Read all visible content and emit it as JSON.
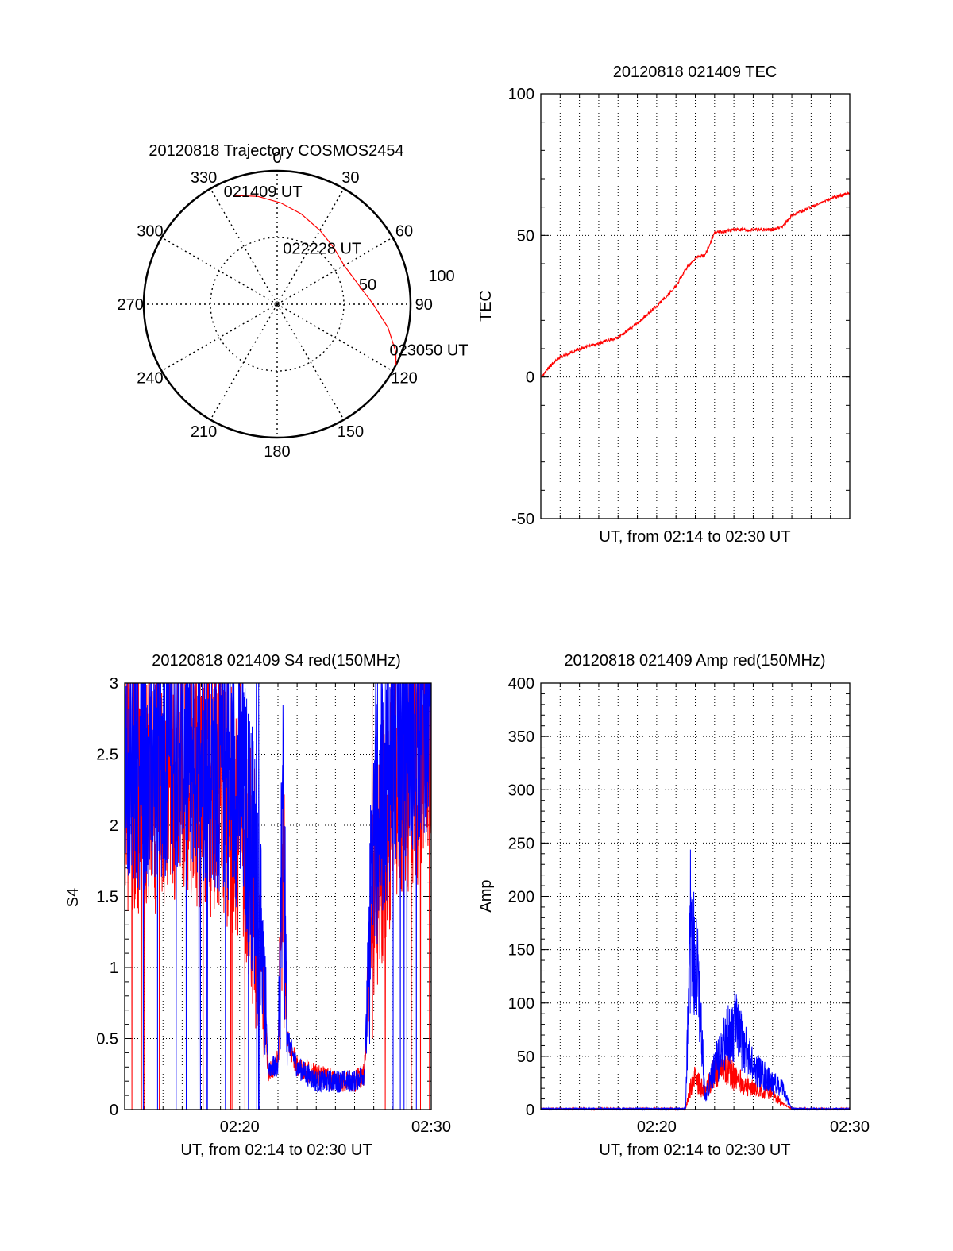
{
  "chart_data": [
    {
      "type": "polar",
      "title": "20120818 Trajectory COSMOS2454",
      "azimuth_ticks": [
        "0",
        "30",
        "60",
        "90",
        "120",
        "150",
        "180",
        "210",
        "240",
        "270",
        "300",
        "330"
      ],
      "radial_ticks": [
        "50",
        "100"
      ],
      "rlim": [
        0,
        100
      ],
      "series": [
        {
          "color": "#ff0000",
          "points": [
            {
              "az": 338,
              "r": 88
            },
            {
              "az": 350,
              "r": 82
            },
            {
              "az": 2,
              "r": 76
            },
            {
              "az": 15,
              "r": 70
            },
            {
              "az": 30,
              "r": 64
            },
            {
              "az": 45,
              "r": 60
            },
            {
              "az": 60,
              "r": 58
            },
            {
              "az": 75,
              "r": 62
            },
            {
              "az": 90,
              "r": 72
            },
            {
              "az": 102,
              "r": 85
            },
            {
              "az": 112,
              "r": 96
            },
            {
              "az": 117,
              "r": 100
            }
          ]
        }
      ],
      "annotations": [
        {
          "text": "021409 UT",
          "az": 338,
          "r": 88
        },
        {
          "text": "022228 UT",
          "az": 45,
          "r": 60
        },
        {
          "text": "023050 UT",
          "az": 112,
          "r": 96
        }
      ]
    },
    {
      "type": "line",
      "title": "20120818 021409 TEC",
      "xlabel": "UT, from 02:14 to 02:30 UT",
      "ylabel": "TEC",
      "xlim": [
        "02:14",
        "02:30"
      ],
      "ylim": [
        -50,
        100
      ],
      "yticks": [
        "-50",
        "0",
        "50",
        "100"
      ],
      "grid": true,
      "series": [
        {
          "color": "#ff0000",
          "x": [
            "02:14:00",
            "02:14:30",
            "02:15:00",
            "02:16:00",
            "02:17:00",
            "02:18:00",
            "02:19:00",
            "02:20:00",
            "02:21:00",
            "02:21:30",
            "02:22:00",
            "02:22:30",
            "02:23:00",
            "02:24:00",
            "02:25:00",
            "02:26:00",
            "02:26:30",
            "02:27:00",
            "02:28:00",
            "02:29:00",
            "02:30:00"
          ],
          "values": [
            0,
            4,
            7,
            10,
            12,
            14,
            19,
            25,
            32,
            38,
            42,
            43,
            51,
            52,
            52,
            52,
            53,
            57,
            60,
            63,
            65
          ]
        }
      ]
    },
    {
      "type": "line",
      "title": "20120818 021409 S4 red(150MHz)",
      "xlabel": "UT, from 02:14 to 02:30 UT",
      "ylabel": "S4",
      "xlim": [
        "02:14",
        "02:30"
      ],
      "ylim": [
        0,
        3
      ],
      "xticks": [
        "02:20",
        "02:30"
      ],
      "yticks": [
        "0",
        "0.5",
        "1",
        "1.5",
        "2",
        "2.5",
        "3"
      ],
      "grid": true,
      "series": [
        {
          "color": "#ff0000",
          "x": [
            "02:14:00",
            "02:15:00",
            "02:16:00",
            "02:17:00",
            "02:18:00",
            "02:19:00",
            "02:20:00",
            "02:20:30",
            "02:21:00",
            "02:21:15",
            "02:21:30",
            "02:22:00",
            "02:22:15",
            "02:22:30",
            "02:23:00",
            "02:24:00",
            "02:25:00",
            "02:26:00",
            "02:26:30",
            "02:27:00",
            "02:28:00",
            "02:29:00",
            "02:30:00"
          ],
          "values": [
            2.3,
            2.2,
            2.3,
            2.4,
            2.3,
            2.2,
            2.0,
            1.8,
            1.3,
            0.8,
            0.25,
            0.35,
            1.8,
            0.5,
            0.3,
            0.25,
            0.2,
            0.2,
            0.25,
            1.5,
            2.3,
            2.4,
            2.6
          ]
        },
        {
          "color": "#0000ff",
          "x": [
            "02:14:00",
            "02:15:00",
            "02:16:00",
            "02:17:00",
            "02:18:00",
            "02:19:00",
            "02:20:00",
            "02:20:30",
            "02:21:00",
            "02:21:15",
            "02:21:30",
            "02:22:00",
            "02:22:15",
            "02:22:30",
            "02:23:00",
            "02:24:00",
            "02:25:00",
            "02:26:00",
            "02:26:30",
            "02:27:00",
            "02:28:00",
            "02:29:00",
            "02:30:00"
          ],
          "values": [
            2.5,
            2.4,
            2.5,
            2.6,
            2.5,
            2.4,
            2.3,
            2.0,
            1.5,
            0.9,
            0.3,
            0.3,
            2.2,
            0.5,
            0.3,
            0.2,
            0.2,
            0.2,
            0.25,
            1.9,
            2.6,
            2.7,
            2.8
          ]
        }
      ]
    },
    {
      "type": "line",
      "title": "20120818 021409 Amp red(150MHz)",
      "xlabel": "UT, from 02:14 to 02:30 UT",
      "ylabel": "Amp",
      "xlim": [
        "02:14",
        "02:30"
      ],
      "ylim": [
        0,
        400
      ],
      "xticks": [
        "02:20",
        "02:30"
      ],
      "yticks": [
        "0",
        "50",
        "100",
        "150",
        "200",
        "250",
        "300",
        "350",
        "400"
      ],
      "grid": true,
      "series": [
        {
          "color": "#ff0000",
          "x": [
            "02:14:00",
            "02:21:30",
            "02:21:45",
            "02:22:00",
            "02:22:30",
            "02:23:00",
            "02:23:30",
            "02:24:00",
            "02:25:00",
            "02:26:00",
            "02:26:30",
            "02:27:00",
            "02:30:00"
          ],
          "values": [
            0,
            0,
            20,
            30,
            15,
            35,
            40,
            30,
            20,
            15,
            5,
            0,
            0
          ]
        },
        {
          "color": "#0000ff",
          "x": [
            "02:14:00",
            "02:21:30",
            "02:21:45",
            "02:22:00",
            "02:22:15",
            "02:22:30",
            "02:23:00",
            "02:23:30",
            "02:24:00",
            "02:25:00",
            "02:26:00",
            "02:26:30",
            "02:27:00",
            "02:30:00"
          ],
          "values": [
            0,
            0,
            170,
            150,
            100,
            10,
            40,
            60,
            80,
            40,
            25,
            20,
            0,
            0
          ]
        }
      ]
    }
  ]
}
